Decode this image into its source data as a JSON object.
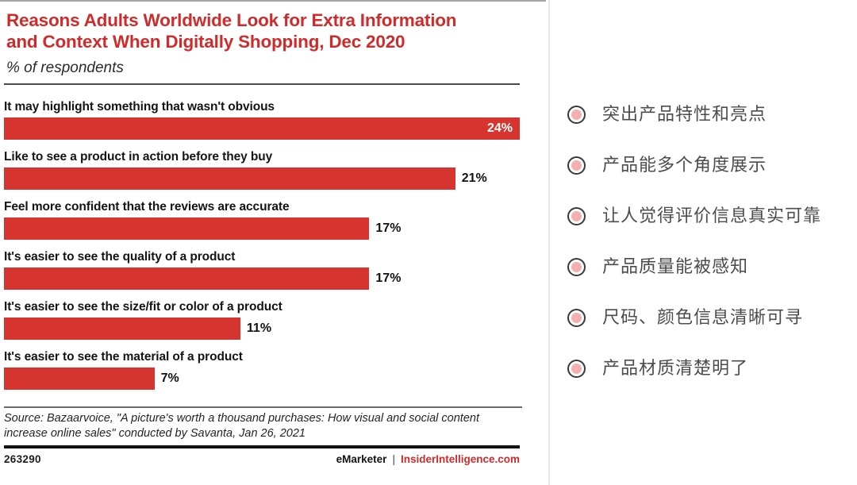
{
  "colors": {
    "brand_red": "#cf2b2b",
    "bar_red": "#d6342e",
    "bullet_ring": "#3a3a3a",
    "bullet_pink": "#f2b0ae",
    "divider_gray": "#e7e7e7"
  },
  "chart_data": {
    "type": "bar",
    "orientation": "horizontal",
    "title": "Reasons Adults Worldwide Look for Extra Information and Context When Digitally Shopping, Dec 2020",
    "subtitle": "% of respondents",
    "categories": [
      "It may highlight something that wasn't obvious",
      "Like to see a product in action before they buy",
      "Feel more confident that the reviews are accurate",
      "It's easier to see the quality of a product",
      "It's easier to see the size/fit or color of a product",
      "It's easier to see the material of a product"
    ],
    "values": [
      24,
      21,
      17,
      17,
      11,
      7
    ],
    "value_labels": [
      "24%",
      "21%",
      "17%",
      "17%",
      "11%",
      "7%"
    ],
    "unit": "%",
    "xlim": [
      0,
      24
    ],
    "grid": false,
    "value_axis_visible": false,
    "bar_color": "#d6342e",
    "max_value_label_position": "inside-end",
    "other_value_label_position": "outside-end"
  },
  "source_note": "Source: Bazaarvoice, \"A picture's worth a thousand purchases: How visual and social content increase online sales\" conducted by Savanta, Jan 26, 2021",
  "footer": {
    "chart_id": "263290",
    "brand": "eMarketer",
    "separator": "|",
    "site": "InsiderIntelligence.com"
  },
  "notes_panel": {
    "bullet_style": "radio-circle",
    "items": [
      "突出产品特性和亮点",
      "产品能多个角度展示",
      "让人觉得评价信息真实可靠",
      "产品质量能被感知",
      "尺码、颜色信息清晰可寻",
      "产品材质清楚明了"
    ]
  }
}
